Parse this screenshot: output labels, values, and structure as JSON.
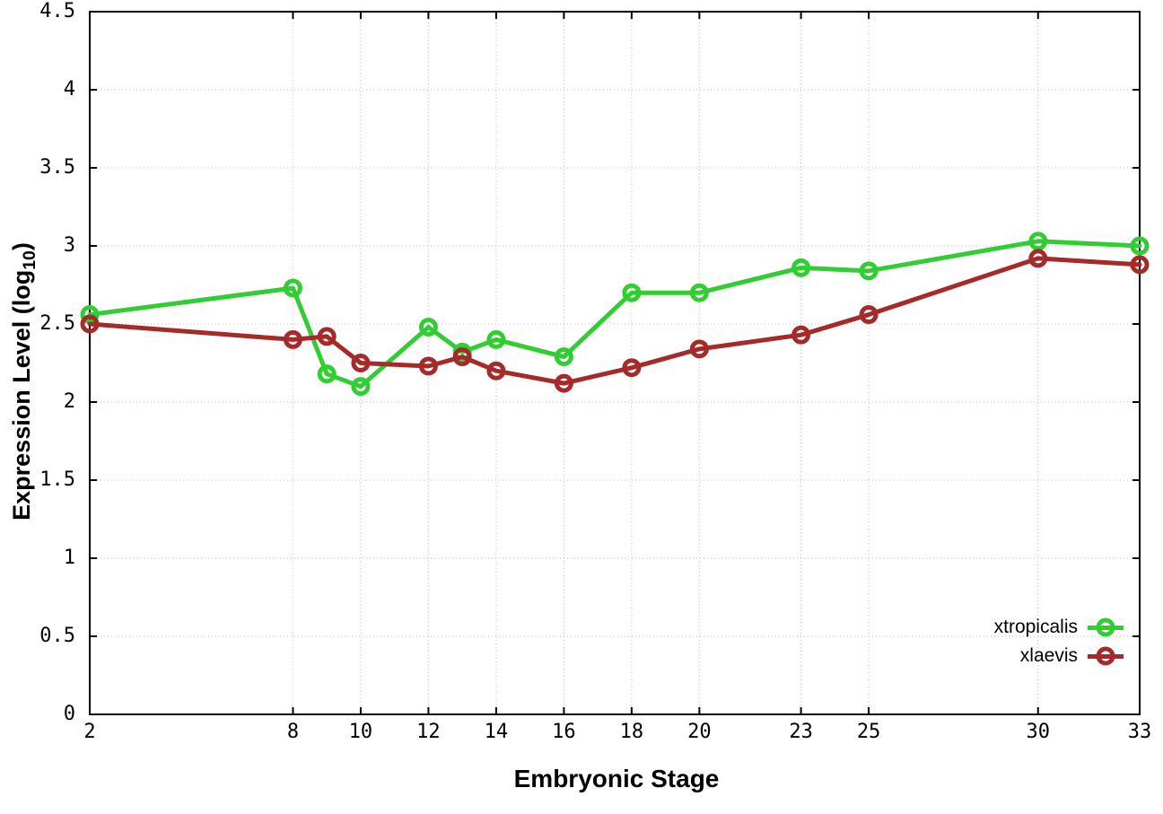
{
  "chart_data": {
    "type": "line",
    "title": "",
    "xlabel": "Embryonic Stage",
    "ylabel": "Expression Level (log10)",
    "ylabel_parts": {
      "prefix": "Expression Level (log",
      "subscript": "10",
      "suffix": ")"
    },
    "xlim": [
      2,
      33
    ],
    "ylim": [
      0,
      4.5
    ],
    "xticks": [
      2,
      8,
      10,
      12,
      14,
      16,
      18,
      20,
      23,
      25,
      30,
      33
    ],
    "yticks": [
      0,
      0.5,
      1,
      1.5,
      2,
      2.5,
      3,
      3.5,
      4,
      4.5
    ],
    "grid": true,
    "legend_position": "bottom-right",
    "marker": "open-circle",
    "x": [
      2,
      8,
      9,
      10,
      12,
      13,
      14,
      16,
      18,
      20,
      23,
      25,
      30,
      33
    ],
    "series": [
      {
        "name": "xtropicalis",
        "color": "#32CD32",
        "values": [
          2.56,
          2.73,
          2.18,
          2.1,
          2.48,
          2.32,
          2.4,
          2.29,
          2.7,
          2.7,
          2.86,
          2.84,
          3.03,
          3.0
        ]
      },
      {
        "name": "xlaevis",
        "color": "#A52A2A",
        "values": [
          2.5,
          2.4,
          2.42,
          2.25,
          2.23,
          2.29,
          2.2,
          2.12,
          2.22,
          2.34,
          2.43,
          2.56,
          2.92,
          2.88
        ]
      }
    ],
    "colors": {
      "grid": "#bbbbbb",
      "axis": "#000000",
      "background": "#ffffff"
    }
  }
}
